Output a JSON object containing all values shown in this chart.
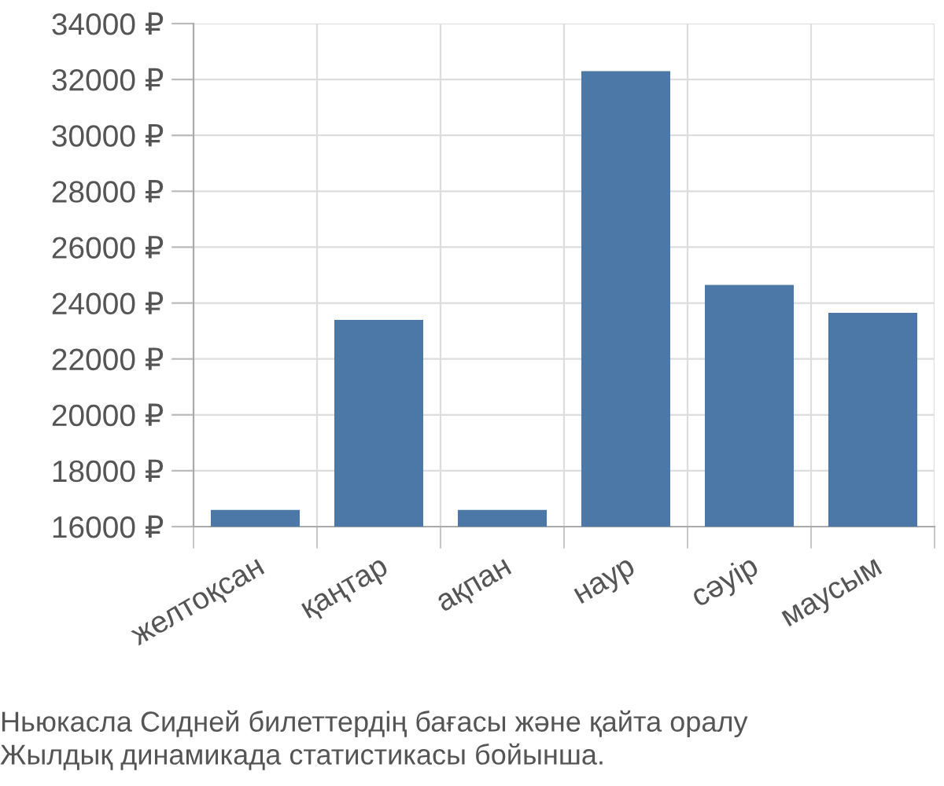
{
  "chart_data": {
    "type": "bar",
    "categories": [
      "желтоқсан",
      "қаңтар",
      "ақпан",
      "наур",
      "сәуір",
      "маусым"
    ],
    "values": [
      16600,
      23400,
      16600,
      32300,
      24650,
      23650
    ],
    "color": "#4c78a8",
    "ylim": [
      16000,
      34000
    ],
    "yticks": [
      {
        "value": 16000,
        "label": "16000 ₽"
      },
      {
        "value": 18000,
        "label": "18000 ₽"
      },
      {
        "value": 20000,
        "label": "20000 ₽"
      },
      {
        "value": 22000,
        "label": "22000 ₽"
      },
      {
        "value": 24000,
        "label": "24000 ₽"
      },
      {
        "value": 26000,
        "label": "26000 ₽"
      },
      {
        "value": 28000,
        "label": "28000 ₽"
      },
      {
        "value": 30000,
        "label": "30000 ₽"
      },
      {
        "value": 32000,
        "label": "32000 ₽"
      },
      {
        "value": 34000,
        "label": "34000 ₽"
      }
    ],
    "grid": true,
    "annotations": [
      "Ньюкасла Сидней билеттердің бағасы және қайта оралу\nЖылдық динамикада статистикасы бойынша."
    ]
  }
}
